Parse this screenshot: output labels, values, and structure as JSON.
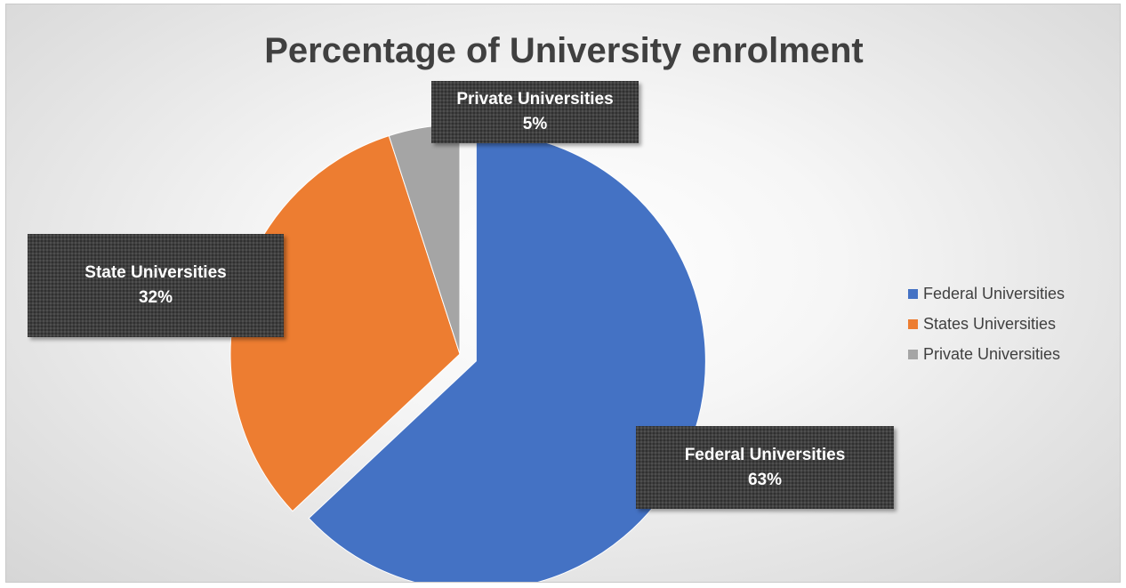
{
  "chart_data": {
    "type": "pie",
    "title": "Percentage of University enrolment",
    "slices": [
      {
        "category": "Federal Universities",
        "value": 63,
        "value_label": "63%",
        "label": "Federal Universities",
        "color": "#4472C4",
        "exploded": true
      },
      {
        "category": "States Universities",
        "value": 32,
        "value_label": "32%",
        "label": "State Universities",
        "color": "#ED7D31",
        "exploded": false
      },
      {
        "category": "Private Universities",
        "value": 5,
        "value_label": "5%",
        "label": "Private Universities",
        "color": "#A5A5A5",
        "exploded": false
      }
    ],
    "legend": {
      "position": "right",
      "items": [
        "Federal Universities",
        "States Universities",
        "Private Universities"
      ]
    },
    "data_labels": "category and percentage, dark callout boxes"
  }
}
